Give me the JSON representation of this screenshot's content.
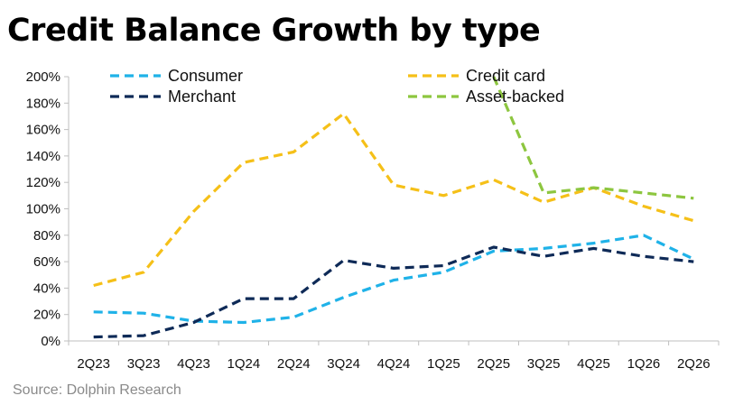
{
  "source": "Source: Dolphin Research",
  "chart_data": {
    "type": "line",
    "title": "Credit Balance Growth by type",
    "xlabel": "",
    "ylabel": "",
    "categories": [
      "2Q23",
      "3Q23",
      "4Q23",
      "1Q24",
      "2Q24",
      "3Q24",
      "4Q24",
      "1Q25",
      "2Q25",
      "3Q25",
      "4Q25",
      "1Q26",
      "2Q26"
    ],
    "ylim": [
      0,
      200
    ],
    "yticks": [
      0,
      20,
      40,
      60,
      80,
      100,
      120,
      140,
      160,
      180,
      200
    ],
    "ytick_labels": [
      "0%",
      "20%",
      "40%",
      "60%",
      "80%",
      "100%",
      "120%",
      "140%",
      "160%",
      "180%",
      "200%"
    ],
    "grid": false,
    "legend_position": "top",
    "series": [
      {
        "name": "Consumer",
        "color": "#1fb2e8",
        "values": [
          22,
          21,
          15,
          14,
          18,
          33,
          46,
          52,
          68,
          70,
          74,
          80,
          62
        ]
      },
      {
        "name": "Merchant",
        "color": "#0e2a57",
        "values": [
          3,
          4,
          14,
          32,
          32,
          61,
          55,
          57,
          71,
          64,
          70,
          64,
          60
        ]
      },
      {
        "name": "Credit card",
        "color": "#f5c018",
        "values": [
          42,
          52,
          98,
          135,
          143,
          172,
          118,
          110,
          122,
          105,
          116,
          102,
          91
        ]
      },
      {
        "name": "Asset-backed",
        "color": "#8dc63f",
        "values": [
          null,
          null,
          null,
          null,
          null,
          null,
          null,
          null,
          200,
          112,
          116,
          112,
          108
        ]
      }
    ]
  }
}
